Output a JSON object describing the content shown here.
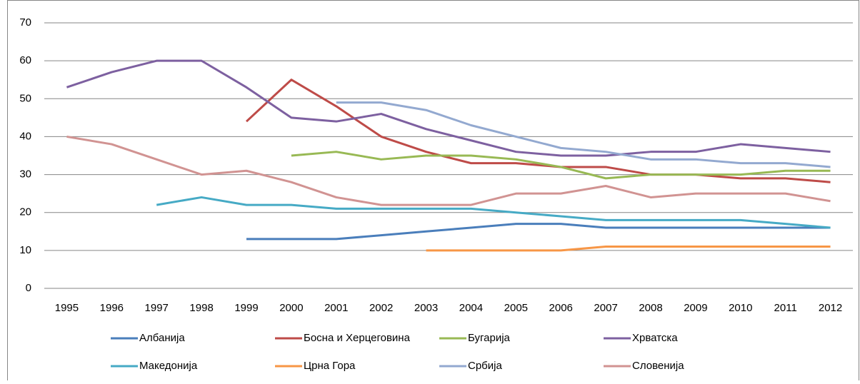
{
  "chart_data": {
    "type": "line",
    "categories": [
      "1995",
      "1996",
      "1997",
      "1998",
      "1999",
      "2000",
      "2001",
      "2002",
      "2003",
      "2004",
      "2005",
      "2006",
      "2007",
      "2008",
      "2009",
      "2010",
      "2011",
      "2012"
    ],
    "ylim": [
      0,
      70
    ],
    "yticks": [
      0,
      10,
      20,
      30,
      40,
      50,
      60,
      70
    ],
    "grid": true,
    "legend": "bottom",
    "series": [
      {
        "name": "Албанија",
        "color": "#4a7ebb",
        "values": [
          null,
          null,
          null,
          null,
          13,
          13,
          13,
          14,
          15,
          16,
          17,
          17,
          16,
          16,
          16,
          16,
          16,
          16
        ]
      },
      {
        "name": "Босна и Херцеговина",
        "color": "#be4b48",
        "values": [
          null,
          null,
          null,
          null,
          44,
          55,
          48,
          40,
          36,
          33,
          33,
          32,
          32,
          30,
          30,
          29,
          29,
          28
        ]
      },
      {
        "name": "Бугарија",
        "color": "#98b954",
        "values": [
          null,
          null,
          null,
          null,
          null,
          35,
          36,
          34,
          35,
          35,
          34,
          32,
          29,
          30,
          30,
          30,
          31,
          31
        ]
      },
      {
        "name": "Хрватска",
        "color": "#7d60a0",
        "values": [
          53,
          57,
          60,
          60,
          53,
          45,
          44,
          46,
          42,
          39,
          36,
          35,
          35,
          36,
          36,
          38,
          37,
          36
        ]
      },
      {
        "name": "Македонија",
        "color": "#46aac5",
        "values": [
          null,
          null,
          22,
          24,
          22,
          22,
          21,
          21,
          21,
          21,
          20,
          19,
          18,
          18,
          18,
          18,
          17,
          16
        ]
      },
      {
        "name": "Црна Гора",
        "color": "#f79646",
        "values": [
          null,
          null,
          null,
          null,
          null,
          null,
          null,
          null,
          10,
          10,
          10,
          10,
          11,
          11,
          11,
          11,
          11,
          11
        ]
      },
      {
        "name": "Србија",
        "color": "#93a9d0",
        "values": [
          null,
          null,
          null,
          null,
          null,
          null,
          49,
          49,
          47,
          43,
          40,
          37,
          36,
          34,
          34,
          33,
          33,
          32
        ]
      },
      {
        "name": "Словенија",
        "color": "#d19392",
        "values": [
          40,
          38,
          34,
          30,
          31,
          28,
          24,
          22,
          22,
          22,
          25,
          25,
          27,
          24,
          25,
          25,
          25,
          23
        ]
      }
    ]
  }
}
